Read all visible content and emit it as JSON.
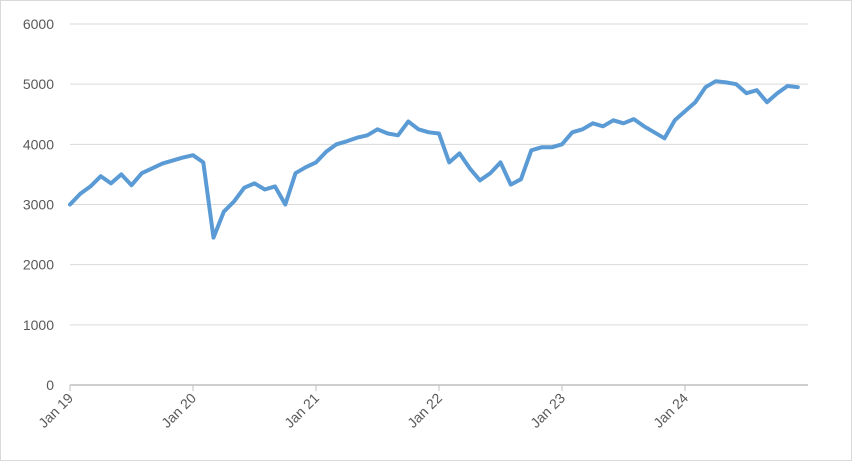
{
  "chart_data": {
    "type": "line",
    "title": "",
    "xlabel": "",
    "ylabel": "",
    "ylim": [
      0,
      6000
    ],
    "yticks": [
      0,
      1000,
      2000,
      3000,
      4000,
      5000,
      6000
    ],
    "ytick_labels": [
      "0",
      "1000",
      "2000",
      "3000",
      "4000",
      "5000",
      "6000"
    ],
    "xlim": [
      "2019-01",
      "2025-01"
    ],
    "xticks": [
      "2019-01",
      "2020-01",
      "2021-01",
      "2022-01",
      "2023-01",
      "2024-01"
    ],
    "xtick_labels": [
      "Jan 19",
      "Jan 20",
      "Jan 21",
      "Jan 22",
      "Jan 23",
      "Jan 24"
    ],
    "grid": true,
    "legend": "none",
    "colors": {
      "line": "#5b9bd5",
      "grid": "#d9d9d9",
      "axis": "#bfbfbf",
      "text": "#595959"
    },
    "series": [
      {
        "x": [
          "2019-01",
          "2019-02",
          "2019-03",
          "2019-04",
          "2019-05",
          "2019-06",
          "2019-07",
          "2019-08",
          "2019-09",
          "2019-10",
          "2019-11",
          "2019-12",
          "2020-01",
          "2020-02",
          "2020-03",
          "2020-04",
          "2020-05",
          "2020-06",
          "2020-07",
          "2020-08",
          "2020-09",
          "2020-10",
          "2020-11",
          "2020-12",
          "2021-01",
          "2021-02",
          "2021-03",
          "2021-04",
          "2021-05",
          "2021-06",
          "2021-07",
          "2021-08",
          "2021-09",
          "2021-10",
          "2021-11",
          "2021-12",
          "2022-01",
          "2022-02",
          "2022-03",
          "2022-04",
          "2022-05",
          "2022-06",
          "2022-07",
          "2022-08",
          "2022-09",
          "2022-10",
          "2022-11",
          "2022-12",
          "2023-01",
          "2023-02",
          "2023-03",
          "2023-04",
          "2023-05",
          "2023-06",
          "2023-07",
          "2023-08",
          "2023-09",
          "2023-10",
          "2023-11",
          "2023-12",
          "2024-01",
          "2024-02",
          "2024-03",
          "2024-04",
          "2024-05",
          "2024-06",
          "2024-07",
          "2024-08",
          "2024-09",
          "2024-10",
          "2024-11",
          "2024-12"
        ],
        "values": [
          3000,
          3180,
          3300,
          3470,
          3350,
          3500,
          3320,
          3520,
          3600,
          3680,
          3730,
          3780,
          3820,
          3700,
          2450,
          2880,
          3050,
          3280,
          3350,
          3250,
          3300,
          3000,
          3520,
          3620,
          3700,
          3880,
          4000,
          4050,
          4110,
          4150,
          4250,
          4180,
          4150,
          4380,
          4250,
          4200,
          4180,
          3700,
          3850,
          3600,
          3400,
          3520,
          3700,
          3330,
          3420,
          3900,
          3950,
          3950,
          4000,
          4200,
          4250,
          4350,
          4300,
          4400,
          4350,
          4420,
          4300,
          4200,
          4100,
          4400,
          4550,
          4700,
          4950,
          5050,
          5030,
          5000,
          4850,
          4900,
          4700,
          4850,
          4970,
          4950
        ]
      }
    ]
  }
}
